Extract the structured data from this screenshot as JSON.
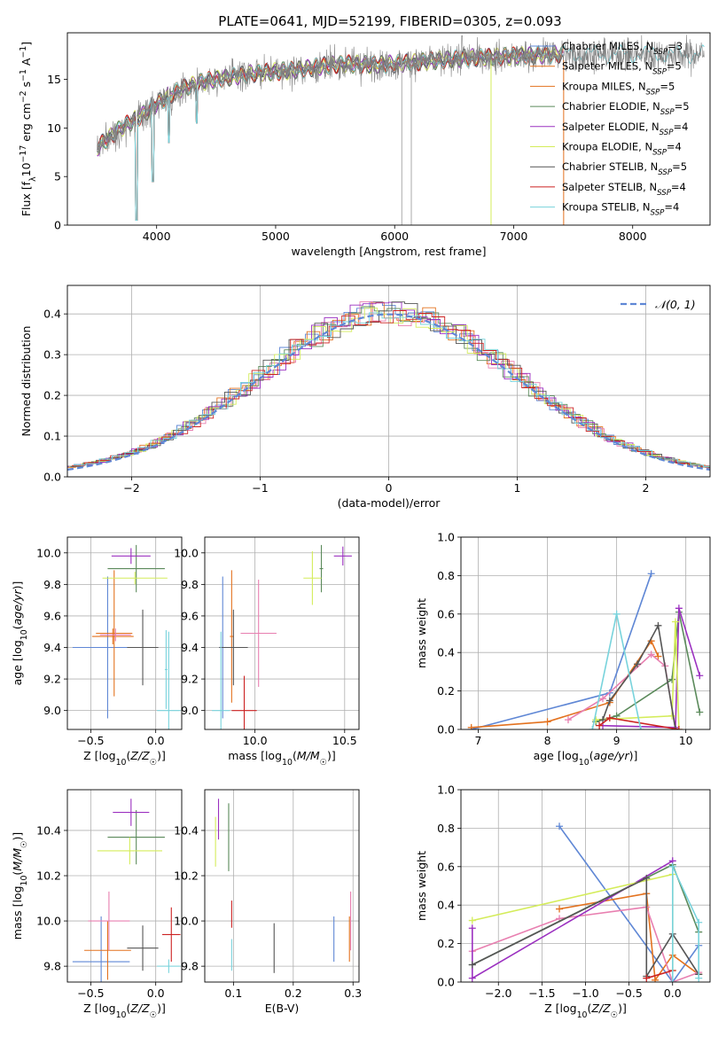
{
  "figure_title": "PLATE=0641, MJD=52199, FIBERID=0305, z=0.093",
  "colors": {
    "Chabrier MILES": "#5f87d5",
    "Salpeter MILES": "#e3721f",
    "Kroupa MILES": "#e3721f",
    "Chabrier ELODIE": "#5b8a5b",
    "Salpeter ELODIE": "#9b30c0",
    "Kroupa ELODIE": "#d4ec5a",
    "Chabrier STELIB": "#555555",
    "Salpeter STELIB": "#cc2222",
    "Kroupa STELIB": "#78d3dc",
    "Kroupa MILES alt": "#e87fb0",
    "data": "#808080",
    "normal_curve": "#5f87d5"
  },
  "chart_data": [
    {
      "id": "spectrum",
      "type": "line",
      "title": "PLATE=0641, MJD=52199, FIBERID=0305, z=0.093",
      "xlabel": "wavelength [Angstrom, rest frame]",
      "ylabel": "Flux [f_λ 10⁻¹⁷ erg cm⁻² s⁻¹ A⁻¹]",
      "xlim": [
        3250,
        8650
      ],
      "ylim": [
        0,
        19.8
      ],
      "xticks": [
        4000,
        5000,
        6000,
        7000,
        8000
      ],
      "yticks": [
        0,
        5,
        10,
        15
      ],
      "grid": false,
      "legend_position": "upper right",
      "legend": [
        "Chabrier MILES, N_SSP=3",
        "Salpeter MILES, N_SSP=5",
        "Kroupa MILES, N_SSP=5",
        "Chabrier ELODIE, N_SSP=5",
        "Salpeter ELODIE, N_SSP=4",
        "Kroupa ELODIE, N_SSP=4",
        "Chabrier STELIB, N_SSP=5",
        "Salpeter STELIB, N_SSP=4",
        "Kroupa STELIB, N_SSP=4"
      ],
      "legend_colors": [
        "#5f87d5",
        "#e3721f",
        "#e3721f",
        "#5b8a5b",
        "#9b30c0",
        "#d4ec5a",
        "#555555",
        "#cc2222",
        "#78d3dc"
      ],
      "continuum": {
        "x": [
          3500,
          3700,
          3900,
          4000,
          4200,
          4400,
          4600,
          4800,
          5000,
          5200,
          5400,
          5600,
          5800,
          6000,
          6200,
          6400,
          6600,
          6800,
          7000,
          7200,
          7400
        ],
        "y": [
          8.0,
          10.0,
          11.5,
          12.5,
          14.0,
          14.8,
          15.2,
          15.6,
          15.8,
          16.0,
          16.4,
          16.6,
          16.5,
          16.6,
          16.8,
          17.0,
          17.2,
          17.3,
          17.4,
          17.5,
          17.6
        ]
      },
      "kroupa_stelib_extent": [
        3500,
        8600
      ]
    },
    {
      "id": "residuals",
      "type": "histogram",
      "xlabel": "(data-model)/error",
      "ylabel": "Normed distribution",
      "xlim": [
        -2.5,
        2.5
      ],
      "ylim": [
        0,
        0.47
      ],
      "xticks": [
        -2,
        -1,
        0,
        1,
        2
      ],
      "yticks": [
        0.0,
        0.1,
        0.2,
        0.3,
        0.4
      ],
      "grid": true,
      "legend": [
        "𝒩(0, 1)"
      ],
      "legend_position": "upper right",
      "bin_width": 0.1
    },
    {
      "id": "age_vs_Z",
      "type": "scatter",
      "xlabel": "Z [log₁₀(Z/Z☉)]",
      "ylabel": "age  [log₁₀(age/yr)]",
      "xlim": [
        -0.68,
        0.2
      ],
      "ylim": [
        8.88,
        10.1
      ],
      "xticks": [
        -0.5,
        0.0
      ],
      "yticks": [
        9.0,
        9.2,
        9.4,
        9.6,
        9.8,
        10.0
      ],
      "grid": true,
      "points": [
        {
          "series": "Chabrier MILES",
          "x": -0.37,
          "y": 9.4,
          "xerr": 0.27,
          "yerr": 0.45
        },
        {
          "series": "Salpeter MILES",
          "x": -0.33,
          "y": 9.47,
          "xerr": 0.16,
          "yerr": 0.05
        },
        {
          "series": "Kroupa MILES",
          "x": -0.32,
          "y": 9.49,
          "xerr": 0.14,
          "yerr": 0.4
        },
        {
          "series": "Kroupa MILES alt",
          "x": -0.31,
          "y": 9.48,
          "xerr": 0.12,
          "yerr": 0.04
        },
        {
          "series": "Chabrier ELODIE",
          "x": -0.15,
          "y": 9.9,
          "xerr": 0.22,
          "yerr": 0.15
        },
        {
          "series": "Salpeter ELODIE",
          "x": -0.19,
          "y": 9.98,
          "xerr": 0.15,
          "yerr": 0.05
        },
        {
          "series": "Kroupa ELODIE",
          "x": -0.16,
          "y": 9.84,
          "xerr": 0.25,
          "yerr": 0.04
        },
        {
          "series": "Chabrier STELIB",
          "x": -0.1,
          "y": 9.4,
          "xerr": 0.12,
          "yerr": 0.24
        },
        {
          "series": "Kroupa STELIB",
          "x": 0.1,
          "y": 9.0,
          "xerr": 0.09,
          "yerr": 0.5
        },
        {
          "series": "Kroupa STELIB",
          "x": 0.08,
          "y": 9.26,
          "xerr": 0.01,
          "yerr": 0.25
        }
      ]
    },
    {
      "id": "age_vs_mass",
      "type": "scatter",
      "xlabel": "mass [log₁₀(M/M☉)]",
      "ylabel": "",
      "xlim": [
        9.72,
        10.58
      ],
      "ylim": [
        8.88,
        10.1
      ],
      "xticks": [
        10.0,
        10.5
      ],
      "yticks": [
        9.0,
        9.2,
        9.4,
        9.6,
        9.8,
        10.0
      ],
      "grid": true,
      "points": [
        {
          "series": "Chabrier MILES",
          "x": 9.82,
          "y": 9.4,
          "xerr": 0.02,
          "yerr": 0.45
        },
        {
          "series": "Salpeter MILES",
          "x": 9.87,
          "y": 9.47,
          "xerr": 0.01,
          "yerr": 0.42
        },
        {
          "series": "Kroupa MILES alt",
          "x": 10.02,
          "y": 9.49,
          "xerr": 0.1,
          "yerr": 0.34
        },
        {
          "series": "Chabrier ELODIE",
          "x": 10.37,
          "y": 9.9,
          "xerr": 0.01,
          "yerr": 0.15
        },
        {
          "series": "Salpeter ELODIE",
          "x": 10.49,
          "y": 9.98,
          "xerr": 0.05,
          "yerr": 0.06
        },
        {
          "series": "Kroupa ELODIE",
          "x": 10.32,
          "y": 9.84,
          "xerr": 0.05,
          "yerr": 0.17
        },
        {
          "series": "Chabrier STELIB",
          "x": 9.88,
          "y": 9.4,
          "xerr": 0.08,
          "yerr": 0.24
        },
        {
          "series": "Salpeter STELIB",
          "x": 9.94,
          "y": 9.0,
          "xerr": 0.07,
          "yerr": 0.22
        },
        {
          "series": "Kroupa STELIB",
          "x": 9.81,
          "y": 9.0,
          "xerr": 0.05,
          "yerr": 0.5
        }
      ]
    },
    {
      "id": "weight_vs_age",
      "type": "line",
      "xlabel": "age  [log₁₀(age/yr)]",
      "ylabel": "mass weight",
      "xlim": [
        6.75,
        10.35
      ],
      "ylim": [
        0,
        1.0
      ],
      "xticks": [
        7,
        8,
        9,
        10
      ],
      "yticks": [
        0.0,
        0.2,
        0.4,
        0.6,
        0.8,
        1.0
      ],
      "grid": true,
      "series": [
        {
          "key": "Chabrier MILES",
          "x": [
            6.9,
            8.9,
            9.5
          ],
          "y": [
            0.0,
            0.19,
            0.81
          ]
        },
        {
          "key": "Salpeter MILES",
          "x": [
            6.9,
            8.0,
            8.9,
            9.5,
            9.6
          ],
          "y": [
            0.01,
            0.04,
            0.14,
            0.46,
            0.38
          ]
        },
        {
          "key": "Kroupa MILES alt",
          "x": [
            8.3,
            8.8,
            9.5,
            9.7,
            9.85
          ],
          "y": [
            0.05,
            0.16,
            0.39,
            0.33,
            0.0
          ]
        },
        {
          "key": "Chabrier ELODIE",
          "x": [
            8.7,
            9.0,
            9.8,
            9.9,
            10.2
          ],
          "y": [
            0.04,
            0.07,
            0.26,
            0.61,
            0.09
          ]
        },
        {
          "key": "Salpeter ELODIE",
          "x": [
            8.8,
            9.85,
            9.9,
            10.2
          ],
          "y": [
            0.02,
            0.01,
            0.63,
            0.28
          ]
        },
        {
          "key": "Kroupa ELODIE",
          "x": [
            8.7,
            9.8,
            9.85,
            9.9
          ],
          "y": [
            0.05,
            0.07,
            0.56,
            0.0
          ]
        },
        {
          "key": "Chabrier STELIB",
          "x": [
            8.8,
            8.9,
            9.3,
            9.6,
            9.85
          ],
          "y": [
            0.05,
            0.15,
            0.34,
            0.54,
            0.0
          ]
        },
        {
          "key": "Salpeter STELIB",
          "x": [
            8.75,
            8.9,
            9.9
          ],
          "y": [
            0.02,
            0.06,
            0.0
          ]
        },
        {
          "key": "Kroupa STELIB",
          "x": [
            8.65,
            9.0,
            9.35
          ],
          "y": [
            0.0,
            0.6,
            0.0
          ]
        }
      ]
    },
    {
      "id": "mass_vs_Z",
      "type": "scatter",
      "xlabel": "Z [log₁₀(Z/Z☉)]",
      "ylabel": "mass [log₁₀(M/M☉)]",
      "xlim": [
        -0.68,
        0.2
      ],
      "ylim": [
        9.73,
        10.58
      ],
      "xticks": [
        -0.5,
        0.0
      ],
      "yticks": [
        9.8,
        10.0,
        10.2,
        10.4
      ],
      "grid": true,
      "points": [
        {
          "series": "Chabrier MILES",
          "x": -0.42,
          "y": 9.82,
          "xerr": 0.22,
          "yerr": 0.2
        },
        {
          "series": "Salpeter MILES",
          "x": -0.37,
          "y": 9.87,
          "xerr": 0.18,
          "yerr": 0.13
        },
        {
          "series": "Kroupa MILES alt",
          "x": -0.36,
          "y": 10.0,
          "xerr": 0.16,
          "yerr": 0.13
        },
        {
          "series": "Chabrier ELODIE",
          "x": -0.15,
          "y": 10.37,
          "xerr": 0.22,
          "yerr": 0.12
        },
        {
          "series": "Salpeter ELODIE",
          "x": -0.19,
          "y": 10.48,
          "xerr": 0.14,
          "yerr": 0.06
        },
        {
          "series": "Kroupa ELODIE",
          "x": -0.2,
          "y": 10.31,
          "xerr": 0.25,
          "yerr": 0.06
        },
        {
          "series": "Chabrier STELIB",
          "x": -0.1,
          "y": 9.88,
          "xerr": 0.12,
          "yerr": 0.1
        },
        {
          "series": "Salpeter STELIB",
          "x": 0.12,
          "y": 9.94,
          "xerr": 0.07,
          "yerr": 0.12
        },
        {
          "series": "Kroupa STELIB",
          "x": 0.1,
          "y": 9.8,
          "xerr": 0.09,
          "yerr": 0.03
        }
      ]
    },
    {
      "id": "mass_vs_ebv",
      "type": "scatter",
      "xlabel": "E(B-V)",
      "ylabel": "",
      "xlim": [
        0.052,
        0.31
      ],
      "ylim": [
        9.73,
        10.58
      ],
      "xticks": [
        0.1,
        0.2,
        0.3
      ],
      "yticks": [
        9.8,
        10.0,
        10.2,
        10.4
      ],
      "grid": true,
      "points": [
        {
          "series": "Chabrier MILES",
          "x": 0.268,
          "y": 9.92,
          "xerr": 0.0,
          "yerr": 0.1
        },
        {
          "series": "Salpeter MILES",
          "x": 0.294,
          "y": 9.92,
          "xerr": 0.0,
          "yerr": 0.1
        },
        {
          "series": "Kroupa MILES alt",
          "x": 0.296,
          "y": 10.0,
          "xerr": 0.0,
          "yerr": 0.13
        },
        {
          "series": "Chabrier ELODIE",
          "x": 0.092,
          "y": 10.37,
          "xerr": 0.0,
          "yerr": 0.15
        },
        {
          "series": "Salpeter ELODIE",
          "x": 0.075,
          "y": 10.45,
          "xerr": 0.0,
          "yerr": 0.09
        },
        {
          "series": "Kroupa ELODIE",
          "x": 0.07,
          "y": 10.35,
          "xerr": 0.0,
          "yerr": 0.11
        },
        {
          "series": "Chabrier STELIB",
          "x": 0.168,
          "y": 9.88,
          "xerr": 0.0,
          "yerr": 0.11
        },
        {
          "series": "Salpeter STELIB",
          "x": 0.097,
          "y": 10.03,
          "xerr": 0.0,
          "yerr": 0.06
        },
        {
          "series": "Kroupa STELIB",
          "x": 0.097,
          "y": 9.85,
          "xerr": 0.0,
          "yerr": 0.07
        }
      ]
    },
    {
      "id": "weight_vs_Z",
      "type": "line",
      "xlabel": "Z [log₁₀(Z/Z☉)]",
      "ylabel": "mass weight",
      "xlim": [
        -2.43,
        0.43
      ],
      "ylim": [
        0,
        1.0
      ],
      "xticks": [
        -2.0,
        -1.5,
        -1.0,
        -0.5,
        0.0
      ],
      "yticks": [
        0.0,
        0.2,
        0.4,
        0.6,
        0.8,
        1.0
      ],
      "grid": true,
      "series": [
        {
          "key": "Chabrier MILES",
          "x": [
            -1.3,
            0.0,
            0.3
          ],
          "y": [
            0.81,
            0.0,
            0.19
          ]
        },
        {
          "key": "Salpeter MILES",
          "x": [
            -1.3,
            -0.3,
            -0.2,
            0.0,
            0.3
          ],
          "y": [
            0.38,
            0.46,
            0.01,
            0.14,
            0.04
          ]
        },
        {
          "key": "Kroupa MILES alt",
          "x": [
            -2.3,
            -1.3,
            -0.3,
            0.0,
            0.3
          ],
          "y": [
            0.16,
            0.33,
            0.39,
            0.0,
            0.05
          ]
        },
        {
          "key": "Chabrier ELODIE",
          "x": [
            -2.3,
            0.0,
            0.3
          ],
          "y": [
            0.09,
            0.61,
            0.26
          ]
        },
        {
          "key": "Salpeter ELODIE",
          "x": [
            -2.3,
            -2.3,
            0.0
          ],
          "y": [
            0.28,
            0.02,
            0.63
          ]
        },
        {
          "key": "Kroupa ELODIE",
          "x": [
            -2.3,
            0.0,
            0.0
          ],
          "y": [
            0.32,
            0.56,
            0.06
          ]
        },
        {
          "key": "Chabrier STELIB",
          "x": [
            -2.3,
            -0.3,
            -0.3,
            0.0,
            0.3
          ],
          "y": [
            0.09,
            0.54,
            0.03,
            0.25,
            0.04
          ]
        },
        {
          "key": "Salpeter STELIB",
          "x": [
            -0.3,
            0.0
          ],
          "y": [
            0.02,
            0.06
          ]
        },
        {
          "key": "Kroupa STELIB",
          "x": [
            0.0,
            0.0,
            0.3,
            0.3
          ],
          "y": [
            0.0,
            0.6,
            0.31,
            0.02
          ]
        }
      ]
    }
  ]
}
